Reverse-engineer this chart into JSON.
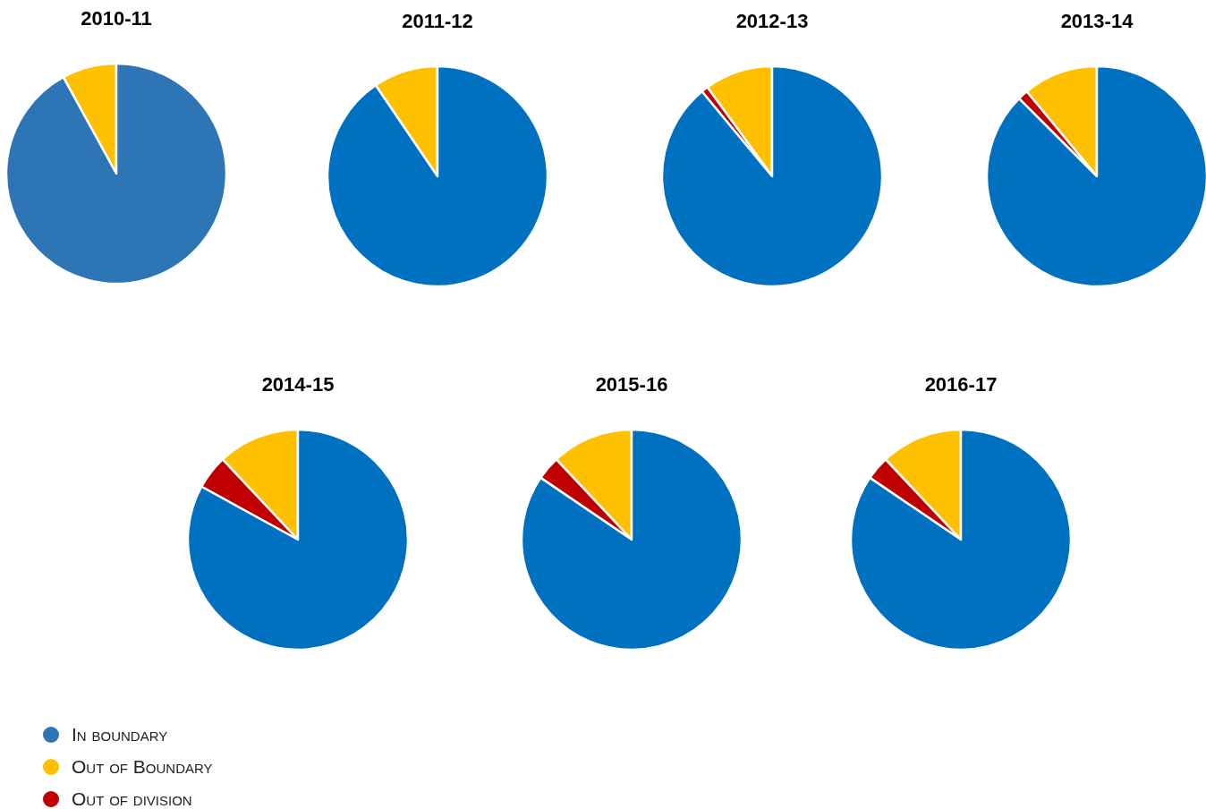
{
  "chart_data": [
    {
      "type": "pie",
      "title": "2010-11",
      "categories": [
        "In boundary",
        "Out of Boundary",
        "Out of division"
      ],
      "values": [
        92,
        8,
        0
      ],
      "colors": [
        "#2e75b6",
        "#ffc000",
        "#c00000"
      ],
      "legend": "bottom right"
    },
    {
      "type": "pie",
      "title": "2011-12",
      "categories": [
        null,
        null
      ],
      "values": [
        90.5,
        9.5
      ],
      "colors": [
        "#0070c0",
        "#ffc000"
      ]
    },
    {
      "type": "pie",
      "title": "2012-13",
      "categories": [
        null,
        null,
        null
      ],
      "values": [
        89,
        10,
        1
      ],
      "colors": [
        "#0070c0",
        "#ffc000",
        "#c00000"
      ]
    },
    {
      "type": "pie",
      "title": "2013-14",
      "categories": [
        null,
        null,
        null
      ],
      "values": [
        87.5,
        11,
        1.5
      ],
      "colors": [
        "#0070c0",
        "#ffc000",
        "#c00000"
      ]
    },
    {
      "type": "pie",
      "title": "2014-15",
      "categories": [
        null,
        null,
        null
      ],
      "values": [
        83,
        12,
        5
      ],
      "colors": [
        "#0070c0",
        "#ffc000",
        "#c00000"
      ]
    },
    {
      "type": "pie",
      "title": "2015-16",
      "categories": [
        null,
        null,
        null
      ],
      "values": [
        84.5,
        12,
        3.5
      ],
      "colors": [
        "#0070c0",
        "#ffc000",
        "#c00000"
      ]
    },
    {
      "type": "pie",
      "title": "2016-17",
      "categories": [
        null,
        null,
        null
      ],
      "values": [
        84.5,
        12,
        3.5
      ],
      "colors": [
        "#0070c0",
        "#ffc000",
        "#c00000"
      ]
    }
  ]
}
